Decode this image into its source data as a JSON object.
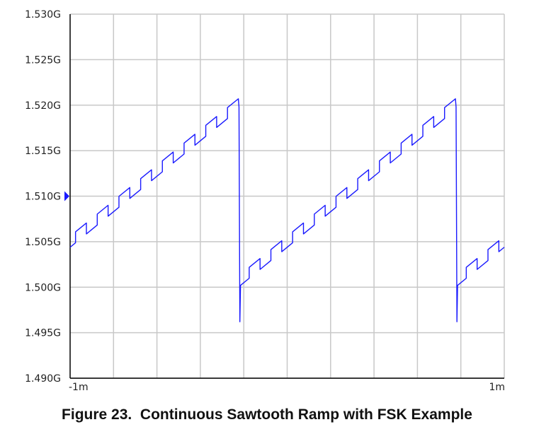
{
  "caption": "Figure 23.  Continuous Sawtooth Ramp with FSK Example",
  "chart_data": {
    "type": "line",
    "title": "",
    "xlabel": "",
    "ylabel": "",
    "xlim": [
      -1,
      1
    ],
    "ylim": [
      1.49,
      1.53
    ],
    "grid": true,
    "x_ticks": [
      {
        "value": -1,
        "label": "-1m"
      },
      {
        "value": 1,
        "label": "1m"
      }
    ],
    "x_grid_step": 0.2,
    "y_ticks": [
      {
        "value": 1.53,
        "label": "1.530G"
      },
      {
        "value": 1.525,
        "label": "1.525G"
      },
      {
        "value": 1.52,
        "label": "1.520G"
      },
      {
        "value": 1.515,
        "label": "1.515G"
      },
      {
        "value": 1.51,
        "label": "1.510G",
        "highlighted": true
      },
      {
        "value": 1.505,
        "label": "1.505G"
      },
      {
        "value": 1.5,
        "label": "1.500G"
      },
      {
        "value": 1.495,
        "label": "1.495G"
      },
      {
        "value": 1.49,
        "label": "1.490G"
      }
    ],
    "marker": {
      "value": 1.51,
      "color": "#1a1aff"
    },
    "colors": {
      "line": "#1a1aff",
      "grid": "#c8c8c8",
      "axis": "#000000",
      "highlight_label": "#1a1aff"
    },
    "series": [
      {
        "points": [
          [
            -1,
            1.50439
          ],
          [
            -0.975,
            1.50488
          ],
          [
            -0.975,
            1.50608
          ],
          [
            -0.925,
            1.50705
          ],
          [
            -0.925,
            1.50585
          ],
          [
            -0.875,
            1.50683
          ],
          [
            -0.875,
            1.50803
          ],
          [
            -0.825,
            1.509
          ],
          [
            -0.825,
            1.5078
          ],
          [
            -0.775,
            1.50878
          ],
          [
            -0.775,
            1.50998
          ],
          [
            -0.725,
            1.51095
          ],
          [
            -0.725,
            1.50975
          ],
          [
            -0.675,
            1.51073
          ],
          [
            -0.675,
            1.51193
          ],
          [
            -0.625,
            1.5129
          ],
          [
            -0.625,
            1.5117
          ],
          [
            -0.575,
            1.51268
          ],
          [
            -0.575,
            1.51388
          ],
          [
            -0.525,
            1.51485
          ],
          [
            -0.525,
            1.51365
          ],
          [
            -0.475,
            1.51463
          ],
          [
            -0.475,
            1.51583
          ],
          [
            -0.425,
            1.5168
          ],
          [
            -0.425,
            1.5156
          ],
          [
            -0.375,
            1.51658
          ],
          [
            -0.375,
            1.51778
          ],
          [
            -0.325,
            1.51875
          ],
          [
            -0.325,
            1.51755
          ],
          [
            -0.275,
            1.51853
          ],
          [
            -0.275,
            1.51973
          ],
          [
            -0.225,
            1.5207
          ],
          [
            -0.222,
            1.5198
          ],
          [
            -0.22,
            1.508
          ],
          [
            -0.218,
            1.4962
          ],
          [
            -0.215,
            1.5002
          ],
          [
            -0.175,
            1.50098
          ],
          [
            -0.175,
            1.50218
          ],
          [
            -0.125,
            1.50315
          ],
          [
            -0.125,
            1.50195
          ],
          [
            -0.075,
            1.50293
          ],
          [
            -0.075,
            1.50413
          ],
          [
            -0.025,
            1.5051
          ],
          [
            -0.025,
            1.5039
          ],
          [
            0.025,
            1.50488
          ],
          [
            0.025,
            1.50608
          ],
          [
            0.075,
            1.50705
          ],
          [
            0.075,
            1.50585
          ],
          [
            0.125,
            1.50683
          ],
          [
            0.125,
            1.50803
          ],
          [
            0.175,
            1.509
          ],
          [
            0.175,
            1.5078
          ],
          [
            0.225,
            1.50878
          ],
          [
            0.225,
            1.50998
          ],
          [
            0.275,
            1.51095
          ],
          [
            0.275,
            1.50975
          ],
          [
            0.325,
            1.51073
          ],
          [
            0.325,
            1.51193
          ],
          [
            0.375,
            1.5129
          ],
          [
            0.375,
            1.5117
          ],
          [
            0.425,
            1.51268
          ],
          [
            0.425,
            1.51388
          ],
          [
            0.475,
            1.51485
          ],
          [
            0.475,
            1.51365
          ],
          [
            0.525,
            1.51463
          ],
          [
            0.525,
            1.51583
          ],
          [
            0.575,
            1.5168
          ],
          [
            0.575,
            1.5156
          ],
          [
            0.625,
            1.51658
          ],
          [
            0.625,
            1.51778
          ],
          [
            0.675,
            1.51875
          ],
          [
            0.675,
            1.51755
          ],
          [
            0.725,
            1.51853
          ],
          [
            0.725,
            1.51973
          ],
          [
            0.775,
            1.5207
          ],
          [
            0.778,
            1.5198
          ],
          [
            0.78,
            1.508
          ],
          [
            0.782,
            1.4962
          ],
          [
            0.785,
            1.5002
          ],
          [
            0.825,
            1.50098
          ],
          [
            0.825,
            1.50218
          ],
          [
            0.875,
            1.50315
          ],
          [
            0.875,
            1.50195
          ],
          [
            0.925,
            1.50293
          ],
          [
            0.925,
            1.50413
          ],
          [
            0.975,
            1.5051
          ],
          [
            0.975,
            1.5039
          ],
          [
            1,
            1.50439
          ]
        ]
      }
    ]
  }
}
